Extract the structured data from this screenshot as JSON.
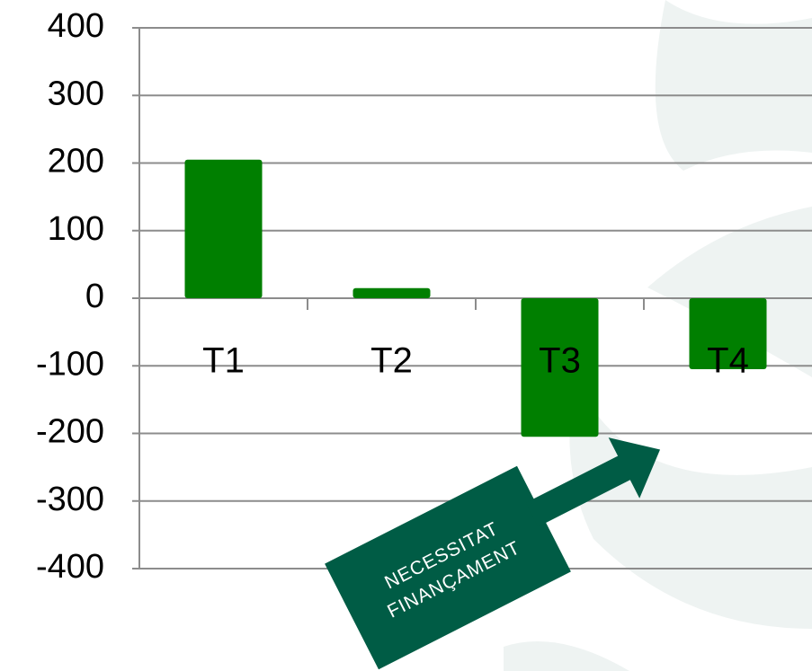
{
  "chart_data": {
    "type": "bar",
    "categories": [
      "T1",
      "T2",
      "T3",
      "T4"
    ],
    "values": [
      205,
      15,
      -205,
      -105
    ],
    "color": "#007f00",
    "ylim": [
      -400,
      400
    ],
    "yticks": [
      -400,
      -300,
      -200,
      -100,
      0,
      100,
      200,
      300,
      400
    ],
    "grid": true,
    "annotation": [
      "NECESSITAT",
      "FINANÇAMENT"
    ]
  }
}
